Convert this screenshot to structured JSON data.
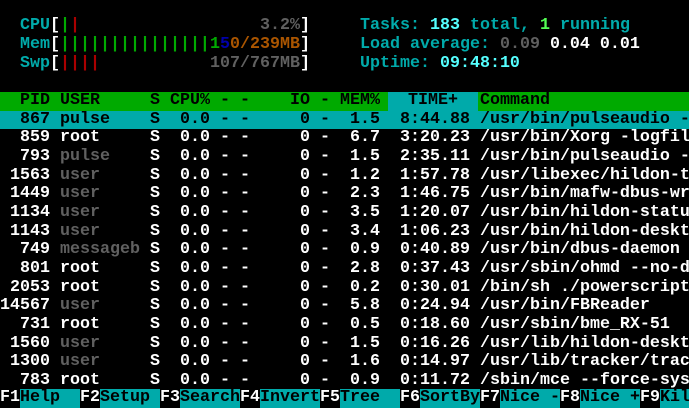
{
  "colors": {
    "header_bg": "#00aa00",
    "selected_bg": "#00aaaa",
    "label": "#00aaaa",
    "highlight": "#55ffff",
    "dim_user": "#606060"
  },
  "meters": {
    "cpu": {
      "label": "CPU",
      "value": "3.2%",
      "bars": [
        {
          "color": "green"
        },
        {
          "color": "red"
        }
      ]
    },
    "mem": {
      "label": "Mem",
      "value_used": "1",
      "value_buffers": "5",
      "value_rest": "0/239MB",
      "bar_count": 15
    },
    "swp": {
      "label": "Swp",
      "value": "107/767MB",
      "bar_count": 4
    }
  },
  "summary": {
    "tasks_label": "Tasks:",
    "tasks_total": "183",
    "tasks_total_suffix": "total,",
    "tasks_running": "1",
    "tasks_running_suffix": "running",
    "load_label": "Load average:",
    "load1": "0.09",
    "load5": "0.04",
    "load15": "0.01",
    "uptime_label": "Uptime:",
    "uptime": "09:48:10"
  },
  "table": {
    "headers": {
      "pid": "PID",
      "user": "USER",
      "s": "S",
      "cpu": "CPU%",
      "d1": "-",
      "d2": "-",
      "io": "IO",
      "d3": "-",
      "mem": "MEM%",
      "time": "TIME+",
      "command": "Command"
    },
    "selected_index": 0,
    "rows": [
      {
        "pid": "867",
        "user": "pulse",
        "dim": false,
        "s": "S",
        "cpu": "0.0",
        "io": "0",
        "mem": "1.5",
        "time": "8:44.88",
        "command": "/usr/bin/pulseaudio -"
      },
      {
        "pid": "859",
        "user": "root",
        "dim": false,
        "s": "S",
        "cpu": "0.0",
        "io": "0",
        "mem": "6.7",
        "time": "3:20.23",
        "command": "/usr/bin/Xorg -logfil"
      },
      {
        "pid": "793",
        "user": "pulse",
        "dim": true,
        "s": "S",
        "cpu": "0.0",
        "io": "0",
        "mem": "1.5",
        "time": "2:35.11",
        "command": "/usr/bin/pulseaudio -"
      },
      {
        "pid": "1563",
        "user": "user",
        "dim": true,
        "s": "S",
        "cpu": "0.0",
        "io": "0",
        "mem": "1.2",
        "time": "1:57.78",
        "command": "/usr/libexec/hildon-t"
      },
      {
        "pid": "1449",
        "user": "user",
        "dim": true,
        "s": "S",
        "cpu": "0.0",
        "io": "0",
        "mem": "2.3",
        "time": "1:46.75",
        "command": "/usr/bin/mafw-dbus-wr"
      },
      {
        "pid": "1134",
        "user": "user",
        "dim": true,
        "s": "S",
        "cpu": "0.0",
        "io": "0",
        "mem": "3.5",
        "time": "1:20.07",
        "command": "/usr/bin/hildon-statu"
      },
      {
        "pid": "1143",
        "user": "user",
        "dim": true,
        "s": "S",
        "cpu": "0.0",
        "io": "0",
        "mem": "3.4",
        "time": "1:06.23",
        "command": "/usr/bin/hildon-deskt"
      },
      {
        "pid": "749",
        "user": "messageb",
        "dim": true,
        "s": "S",
        "cpu": "0.0",
        "io": "0",
        "mem": "0.9",
        "time": "0:40.89",
        "command": "/usr/bin/dbus-daemon"
      },
      {
        "pid": "801",
        "user": "root",
        "dim": false,
        "s": "S",
        "cpu": "0.0",
        "io": "0",
        "mem": "2.8",
        "time": "0:37.43",
        "command": "/usr/sbin/ohmd --no-d"
      },
      {
        "pid": "2053",
        "user": "root",
        "dim": false,
        "s": "S",
        "cpu": "0.0",
        "io": "0",
        "mem": "0.2",
        "time": "0:30.01",
        "command": "/bin/sh ./powerscript"
      },
      {
        "pid": "14567",
        "user": "user",
        "dim": true,
        "s": "S",
        "cpu": "0.0",
        "io": "0",
        "mem": "5.8",
        "time": "0:24.94",
        "command": "/usr/bin/FBReader"
      },
      {
        "pid": "731",
        "user": "root",
        "dim": false,
        "s": "S",
        "cpu": "0.0",
        "io": "0",
        "mem": "0.5",
        "time": "0:18.60",
        "command": "/usr/sbin/bme_RX-51"
      },
      {
        "pid": "1560",
        "user": "user",
        "dim": true,
        "s": "S",
        "cpu": "0.0",
        "io": "0",
        "mem": "1.5",
        "time": "0:16.26",
        "command": "/usr/lib/hildon-deskt"
      },
      {
        "pid": "1300",
        "user": "user",
        "dim": true,
        "s": "S",
        "cpu": "0.0",
        "io": "0",
        "mem": "1.6",
        "time": "0:14.97",
        "command": "/usr/lib/tracker/trac"
      },
      {
        "pid": "783",
        "user": "root",
        "dim": false,
        "s": "S",
        "cpu": "0.0",
        "io": "0",
        "mem": "0.9",
        "time": "0:11.72",
        "command": "/sbin/mce --force-sys"
      }
    ],
    "dash": "-"
  },
  "footer": [
    {
      "key": "F1",
      "label": "Help"
    },
    {
      "key": "F2",
      "label": "Setup"
    },
    {
      "key": "F3",
      "label": "Search"
    },
    {
      "key": "F4",
      "label": "Invert"
    },
    {
      "key": "F5",
      "label": "Tree"
    },
    {
      "key": "F6",
      "label": "SortBy"
    },
    {
      "key": "F7",
      "label": "Nice -"
    },
    {
      "key": "F8",
      "label": "Nice +"
    },
    {
      "key": "F9",
      "label": "Kil"
    }
  ]
}
